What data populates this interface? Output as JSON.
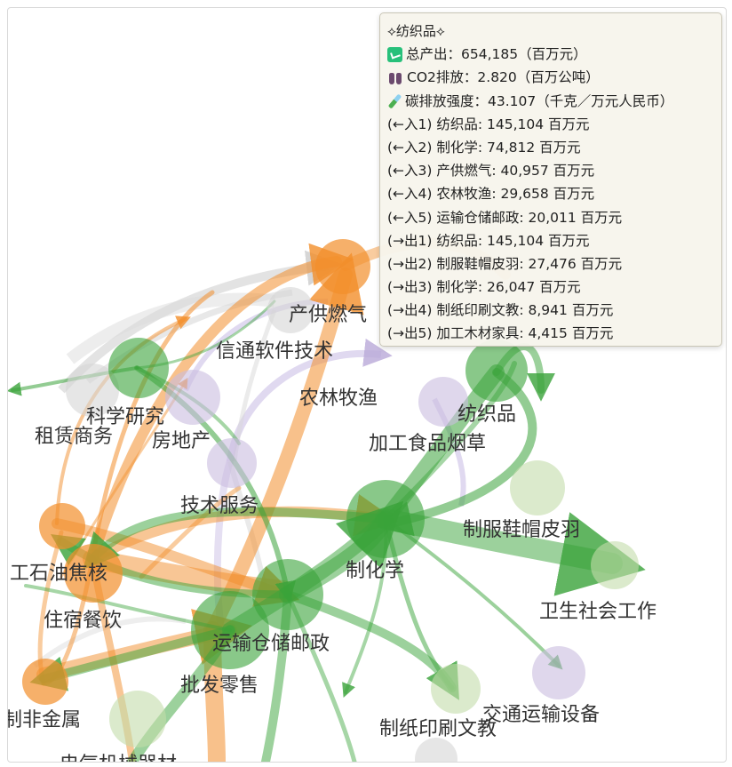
{
  "nodes": [
    {
      "id": "chanhong_ranqi",
      "label": "产供燃气",
      "color": "#f28e2b"
    },
    {
      "id": "xintong",
      "label": "信通软件技术",
      "color": "#c9bde0"
    },
    {
      "id": "kexue",
      "label": "科学研究",
      "color": "#3aa33a"
    },
    {
      "id": "zulin",
      "label": "租赁商务",
      "color": "#d6d6d6"
    },
    {
      "id": "fangdichan",
      "label": "房地产",
      "color": "#c9bde0"
    },
    {
      "id": "nonglin",
      "label": "农林牧渔",
      "color": "#c9bde0"
    },
    {
      "id": "fangzhi",
      "label": "纺织品",
      "color": "#3aa33a"
    },
    {
      "id": "jiagong",
      "label": "加工食品烟草",
      "color": "#c9bde0"
    },
    {
      "id": "jishu",
      "label": "技术服务",
      "color": "#c9bde0"
    },
    {
      "id": "zhihuaxue",
      "label": "制化学",
      "color": "#3aa33a"
    },
    {
      "id": "zhifu",
      "label": "制服鞋帽皮羽",
      "color": "#c3dcaa"
    },
    {
      "id": "shiyou",
      "label": "工石油焦核",
      "color": "#f28e2b"
    },
    {
      "id": "weisheng",
      "label": "卫生社会工作",
      "color": "#c3dcaa"
    },
    {
      "id": "zhusu",
      "label": "住宿餐饮",
      "color": "#f28e2b"
    },
    {
      "id": "yunshu",
      "label": "运输仓储邮政",
      "color": "#3aa33a"
    },
    {
      "id": "pifa",
      "label": "批发零售",
      "color": "#3aa33a"
    },
    {
      "id": "jiaotong",
      "label": "交通运输设备",
      "color": "#c9bde0"
    },
    {
      "id": "feijinshu",
      "label": "制非金属",
      "color": "#f28e2b"
    },
    {
      "id": "zhizhi",
      "label": "制纸印刷文教",
      "color": "#c3dcaa"
    },
    {
      "id": "dianqi",
      "label": "电气机械器材",
      "color": "#c3dcaa"
    }
  ],
  "tooltip": {
    "title": "⟡纺织品⟡",
    "total_output_label": "总产出",
    "total_output_value": "654,185（百万元）",
    "co2_label": "CO2排放",
    "co2_value": "2.820（百万公吨）",
    "intensity_label": "碳排放强度",
    "intensity_value": "43.107（千克／万元人民币）",
    "flows": [
      "(←入1) 纺织品: 145,104 百万元",
      "(←入2) 制化学: 74,812 百万元",
      "(←入3) 产供燃气: 40,957 百万元",
      "(←入4) 农林牧渔: 29,658 百万元",
      "(←入5) 运输仓储邮政: 20,011 百万元",
      "(→出1) 纺织品: 145,104 百万元",
      "(→出2) 制服鞋帽皮羽: 27,476 百万元",
      "(→出3) 制化学: 26,047 百万元",
      "(→出4) 制纸印刷文教: 8,941 百万元",
      "(→出5) 加工木材家具: 4,415 百万元"
    ],
    "icons": [
      "chart-up-icon",
      "footprint-icon",
      "test-tube-icon"
    ]
  },
  "colors": {
    "orange": "#f28e2b",
    "green": "#3aa33a",
    "lightgreen": "#c3dcaa",
    "purple": "#c9bde0",
    "gray": "#d6d6d6"
  }
}
